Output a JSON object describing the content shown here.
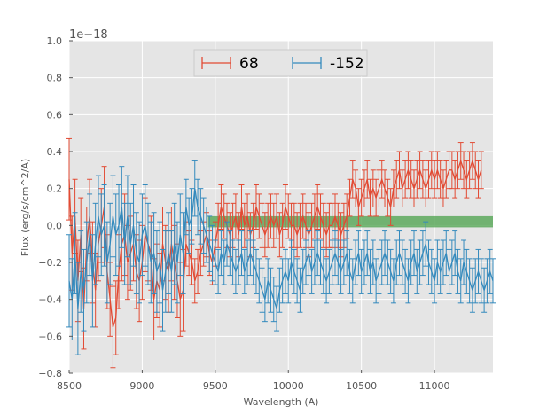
{
  "chart_data": {
    "type": "line",
    "title": "",
    "xlabel": "Wavelength (A)",
    "ylabel": "Flux (erg/s/cm^2/A)",
    "y_offset_label": "1e−18",
    "xlim": [
      8500,
      11400
    ],
    "ylim": [
      -0.8,
      1.0
    ],
    "x_ticks": [
      8500,
      9000,
      9500,
      10000,
      10500,
      11000
    ],
    "x_tick_labels": [
      "8500",
      "9000",
      "9500",
      "10000",
      "10500",
      "11000"
    ],
    "y_ticks": [
      -0.8,
      -0.6,
      -0.4,
      -0.2,
      0.0,
      0.2,
      0.4,
      0.6,
      0.8,
      1.0
    ],
    "y_tick_labels": [
      "−0.8",
      "−0.6",
      "−0.4",
      "−0.2",
      "0.0",
      "0.2",
      "0.4",
      "0.6",
      "0.8",
      "1.0"
    ],
    "grid": true,
    "legend_position": "top-center",
    "shaded_band": {
      "x": [
        9450,
        11400
      ],
      "y": [
        -0.01,
        0.05
      ],
      "color": "#4aa04a"
    },
    "x_start": 8500,
    "x_step": 20,
    "series": [
      {
        "name": "68",
        "color": "#e24a33",
        "values": [
          0.25,
          -0.15,
          0.05,
          -0.3,
          -0.05,
          -0.45,
          -0.1,
          0.05,
          -0.2,
          -0.35,
          -0.1,
          0.0,
          0.1,
          -0.25,
          -0.4,
          -0.55,
          -0.5,
          -0.25,
          -0.1,
          -0.05,
          -0.2,
          -0.15,
          -0.1,
          -0.25,
          -0.3,
          -0.2,
          -0.05,
          -0.1,
          -0.15,
          -0.4,
          -0.3,
          -0.35,
          -0.1,
          -0.2,
          -0.25,
          -0.1,
          -0.2,
          -0.3,
          -0.4,
          -0.35,
          -0.1,
          -0.15,
          -0.2,
          -0.3,
          -0.25,
          -0.15,
          -0.1,
          -0.05,
          -0.15,
          -0.2,
          -0.1,
          0.0,
          0.1,
          0.05,
          0.0,
          -0.05,
          0.0,
          0.05,
          -0.05,
          0.1,
          0.0,
          0.05,
          -0.05,
          0.0,
          0.1,
          0.05,
          0.0,
          -0.05,
          0.0,
          0.05,
          0.0,
          0.05,
          -0.05,
          0.0,
          0.1,
          0.05,
          0.0,
          0.0,
          -0.05,
          0.0,
          0.05,
          0.0,
          -0.05,
          0.0,
          0.05,
          0.1,
          0.05,
          0.0,
          -0.05,
          0.0,
          0.0,
          0.05,
          0.0,
          -0.05,
          0.0,
          0.05,
          0.15,
          0.25,
          0.2,
          0.1,
          0.15,
          0.2,
          0.25,
          0.15,
          0.2,
          0.15,
          0.2,
          0.25,
          0.2,
          0.15,
          0.1,
          0.2,
          0.25,
          0.3,
          0.2,
          0.25,
          0.3,
          0.25,
          0.2,
          0.25,
          0.3,
          0.25,
          0.2,
          0.25,
          0.3,
          0.25,
          0.3,
          0.25,
          0.2,
          0.25,
          0.3,
          0.3,
          0.25,
          0.3,
          0.35,
          0.3,
          0.25,
          0.3,
          0.35,
          0.3,
          0.25,
          0.3
        ],
        "errors": [
          0.22,
          0.2,
          0.2,
          0.22,
          0.2,
          0.22,
          0.2,
          0.2,
          0.22,
          0.2,
          0.2,
          0.2,
          0.22,
          0.2,
          0.2,
          0.22,
          0.2,
          0.2,
          0.2,
          0.22,
          0.2,
          0.2,
          0.2,
          0.2,
          0.22,
          0.2,
          0.2,
          0.2,
          0.2,
          0.22,
          0.2,
          0.2,
          0.2,
          0.2,
          0.22,
          0.2,
          0.2,
          0.2,
          0.2,
          0.22,
          0.12,
          0.12,
          0.12,
          0.12,
          0.12,
          0.12,
          0.12,
          0.12,
          0.12,
          0.12,
          0.12,
          0.12,
          0.12,
          0.12,
          0.12,
          0.12,
          0.12,
          0.12,
          0.12,
          0.12,
          0.12,
          0.12,
          0.12,
          0.12,
          0.12,
          0.12,
          0.12,
          0.12,
          0.12,
          0.12,
          0.12,
          0.12,
          0.12,
          0.12,
          0.12,
          0.12,
          0.12,
          0.12,
          0.12,
          0.12,
          0.12,
          0.12,
          0.12,
          0.12,
          0.12,
          0.12,
          0.12,
          0.12,
          0.12,
          0.12,
          0.12,
          0.12,
          0.12,
          0.12,
          0.12,
          0.12,
          0.1,
          0.1,
          0.1,
          0.1,
          0.1,
          0.1,
          0.1,
          0.1,
          0.1,
          0.1,
          0.1,
          0.1,
          0.1,
          0.1,
          0.1,
          0.1,
          0.1,
          0.1,
          0.1,
          0.1,
          0.1,
          0.1,
          0.1,
          0.1,
          0.1,
          0.1,
          0.1,
          0.1,
          0.1,
          0.1,
          0.1,
          0.1,
          0.1,
          0.1,
          0.1,
          0.1,
          0.1,
          0.1,
          0.1,
          0.1,
          0.1,
          0.1,
          0.1,
          0.1,
          0.1,
          0.1
        ]
      },
      {
        "name": "-152",
        "color": "#348abd",
        "values": [
          -0.3,
          -0.4,
          -0.15,
          -0.45,
          -0.25,
          -0.35,
          -0.2,
          -0.05,
          -0.3,
          -0.1,
          0.05,
          -0.05,
          0.0,
          -0.2,
          -0.1,
          0.05,
          -0.05,
          0.0,
          0.1,
          -0.1,
          0.05,
          -0.1,
          0.0,
          -0.15,
          -0.2,
          -0.05,
          0.0,
          -0.1,
          -0.2,
          -0.15,
          -0.25,
          -0.2,
          -0.35,
          -0.25,
          -0.15,
          -0.25,
          -0.1,
          -0.2,
          -0.05,
          -0.15,
          0.1,
          0.0,
          0.05,
          0.2,
          0.1,
          0.05,
          0.0,
          -0.05,
          -0.1,
          -0.15,
          -0.2,
          -0.25,
          -0.15,
          -0.2,
          -0.1,
          -0.15,
          -0.2,
          -0.25,
          -0.2,
          -0.15,
          -0.25,
          -0.2,
          -0.15,
          -0.2,
          -0.25,
          -0.3,
          -0.35,
          -0.4,
          -0.3,
          -0.35,
          -0.4,
          -0.45,
          -0.35,
          -0.3,
          -0.25,
          -0.3,
          -0.2,
          -0.25,
          -0.3,
          -0.35,
          -0.25,
          -0.2,
          -0.15,
          -0.25,
          -0.2,
          -0.15,
          -0.2,
          -0.25,
          -0.3,
          -0.25,
          -0.2,
          -0.15,
          -0.2,
          -0.25,
          -0.2,
          -0.15,
          -0.25,
          -0.3,
          -0.2,
          -0.15,
          -0.25,
          -0.2,
          -0.15,
          -0.25,
          -0.2,
          -0.3,
          -0.25,
          -0.2,
          -0.15,
          -0.2,
          -0.25,
          -0.3,
          -0.2,
          -0.15,
          -0.2,
          -0.25,
          -0.3,
          -0.2,
          -0.15,
          -0.25,
          -0.2,
          -0.15,
          -0.1,
          -0.2,
          -0.25,
          -0.3,
          -0.2,
          -0.25,
          -0.2,
          -0.15,
          -0.25,
          -0.2,
          -0.15,
          -0.25,
          -0.3,
          -0.2,
          -0.25,
          -0.3,
          -0.35,
          -0.3,
          -0.25,
          -0.3,
          -0.35,
          -0.3,
          -0.25,
          -0.3
        ],
        "errors": [
          0.25,
          0.22,
          0.22,
          0.25,
          0.22,
          0.22,
          0.22,
          0.22,
          0.25,
          0.22,
          0.22,
          0.22,
          0.22,
          0.22,
          0.22,
          0.22,
          0.22,
          0.22,
          0.22,
          0.22,
          0.22,
          0.22,
          0.22,
          0.22,
          0.22,
          0.22,
          0.22,
          0.22,
          0.22,
          0.22,
          0.22,
          0.22,
          0.22,
          0.22,
          0.22,
          0.22,
          0.22,
          0.22,
          0.22,
          0.22,
          0.15,
          0.15,
          0.15,
          0.15,
          0.15,
          0.15,
          0.15,
          0.15,
          0.15,
          0.15,
          0.12,
          0.12,
          0.12,
          0.12,
          0.12,
          0.12,
          0.12,
          0.12,
          0.12,
          0.12,
          0.12,
          0.12,
          0.12,
          0.12,
          0.12,
          0.12,
          0.12,
          0.12,
          0.12,
          0.12,
          0.12,
          0.12,
          0.12,
          0.12,
          0.12,
          0.12,
          0.12,
          0.12,
          0.12,
          0.12,
          0.12,
          0.12,
          0.12,
          0.12,
          0.12,
          0.12,
          0.12,
          0.12,
          0.12,
          0.12,
          0.12,
          0.12,
          0.12,
          0.12,
          0.12,
          0.12,
          0.12,
          0.12,
          0.12,
          0.12,
          0.12,
          0.12,
          0.12,
          0.12,
          0.12,
          0.12,
          0.12,
          0.12,
          0.12,
          0.12,
          0.12,
          0.12,
          0.12,
          0.12,
          0.12,
          0.12,
          0.12,
          0.12,
          0.12,
          0.12,
          0.12,
          0.12,
          0.12,
          0.12,
          0.12,
          0.12,
          0.12,
          0.12,
          0.12,
          0.12,
          0.12,
          0.12,
          0.12,
          0.12,
          0.12,
          0.12,
          0.12,
          0.12,
          0.12,
          0.12,
          0.12,
          0.12,
          0.12,
          0.12,
          0.12,
          0.12
        ]
      }
    ]
  }
}
